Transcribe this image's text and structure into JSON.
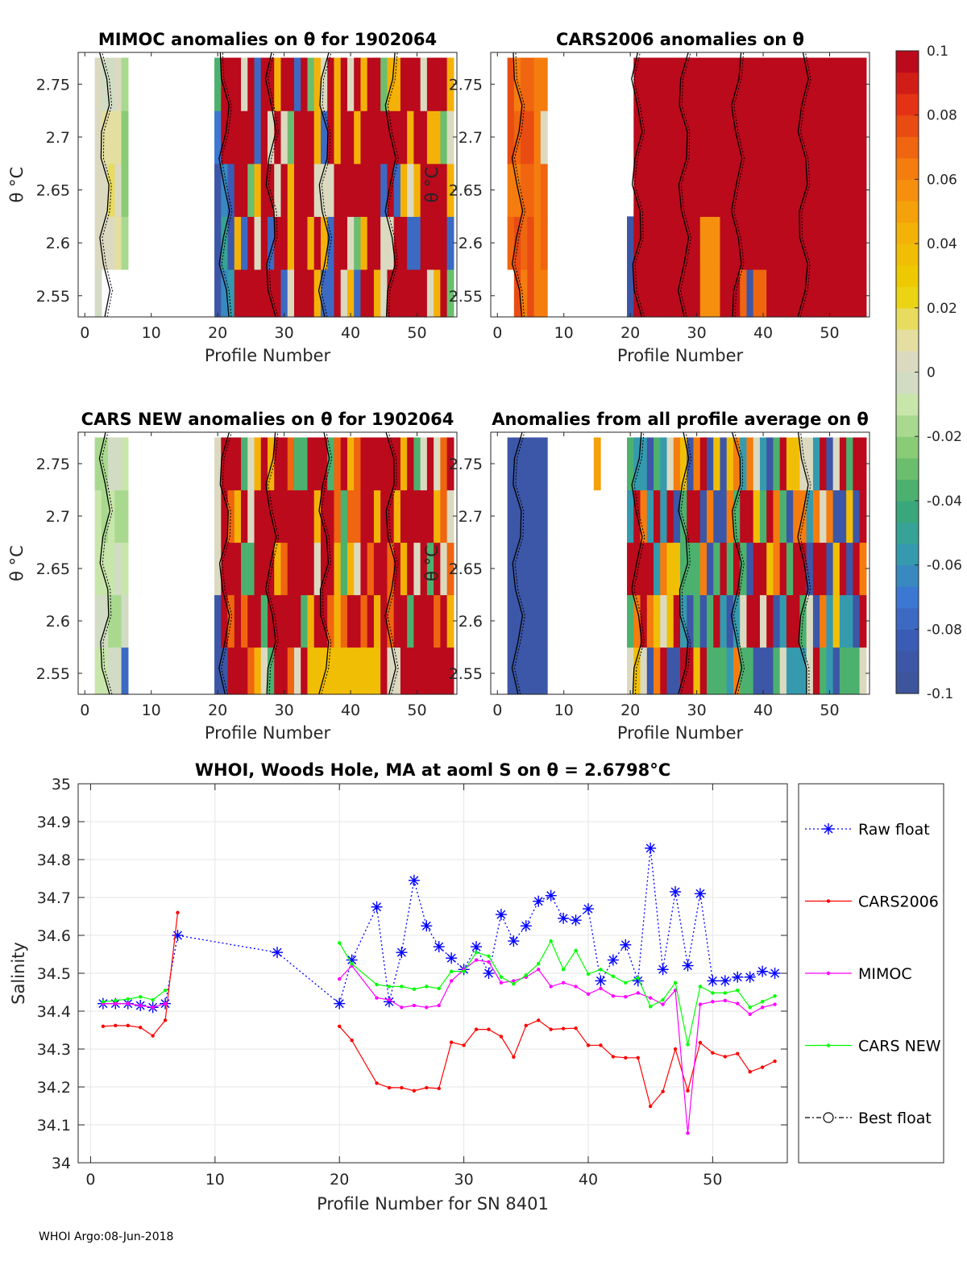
{
  "footer": "WHOI Argo:08-Jun-2018",
  "colors": {
    "raw": "#0000ff",
    "cars2006": "#ff0000",
    "mimoc": "#ff00ff",
    "carsnew": "#00ff00",
    "best": "#000000",
    "grid": "#e6e6e6",
    "axis": "#262626"
  },
  "colorbar": {
    "ticks": [
      "0.1",
      "0.08",
      "0.06",
      "0.04",
      "0.02",
      "0",
      "-0.02",
      "-0.04",
      "-0.06",
      "-0.08",
      "-0.1"
    ],
    "range": [
      -0.1,
      0.1
    ],
    "levels": 30
  },
  "heatmaps": {
    "xlabel": "Profile Number",
    "ylabel": "θ °C",
    "xticks": [
      "0",
      "10",
      "20",
      "30",
      "40",
      "50"
    ],
    "yticks": [
      "2.75",
      "2.7",
      "2.65",
      "2.6",
      "2.55"
    ],
    "panels": [
      {
        "title": "MIMOC anomalies on θ  for 1902064",
        "pattern": "mimoc"
      },
      {
        "title": "CARS2006 anomalies on θ",
        "pattern": "cars2006"
      },
      {
        "title": "CARS NEW anomalies on θ for 1902064",
        "pattern": "carsnew"
      },
      {
        "title": "Anomalies from all profile average on θ",
        "pattern": "avg"
      }
    ]
  },
  "chart_data": [
    {
      "type": "heatmap",
      "title": "MIMOC anomalies on θ  for 1902064",
      "xlabel": "Profile Number",
      "ylabel": "θ °C",
      "xlim": [
        -1,
        56
      ],
      "ylim": [
        2.53,
        2.78
      ],
      "theta_levels": [
        2.55,
        2.6,
        2.65,
        2.7,
        2.75
      ],
      "value_range": [
        -0.1,
        0.1
      ]
    },
    {
      "type": "heatmap",
      "title": "CARS2006 anomalies on θ",
      "xlabel": "Profile Number",
      "ylabel": "",
      "xlim": [
        -1,
        56
      ],
      "ylim": [
        2.53,
        2.78
      ],
      "theta_levels": [
        2.55,
        2.6,
        2.65,
        2.7,
        2.75
      ],
      "value_range": [
        -0.1,
        0.1
      ]
    },
    {
      "type": "heatmap",
      "title": "CARS NEW anomalies on θ for 1902064",
      "xlabel": "Profile Number",
      "ylabel": "θ °C",
      "xlim": [
        -1,
        56
      ],
      "ylim": [
        2.53,
        2.78
      ],
      "theta_levels": [
        2.55,
        2.6,
        2.65,
        2.7,
        2.75
      ],
      "value_range": [
        -0.1,
        0.1
      ]
    },
    {
      "type": "heatmap",
      "title": "Anomalies from all profile average on θ",
      "xlabel": "Profile Number",
      "ylabel": "",
      "xlim": [
        -1,
        56
      ],
      "ylim": [
        2.53,
        2.78
      ],
      "theta_levels": [
        2.55,
        2.6,
        2.65,
        2.7,
        2.75
      ],
      "value_range": [
        -0.1,
        0.1
      ]
    },
    {
      "type": "line",
      "title": "WHOI, Woods Hole, MA at aoml S on θ = 2.6798°C",
      "xlabel": "Profile Number for SN 8401",
      "ylabel": "Salinity",
      "xlim": [
        -1,
        56
      ],
      "ylim": [
        34,
        35
      ],
      "xticks": [
        "0",
        "10",
        "20",
        "30",
        "40",
        "50"
      ],
      "yticks": [
        "35",
        "34.9",
        "34.8",
        "34.7",
        "34.6",
        "34.5",
        "34.4",
        "34.3",
        "34.2",
        "34.1",
        "34"
      ],
      "grid": true,
      "legend_position": "right",
      "series": [
        {
          "name": "Raw float",
          "style": "dotted-star",
          "x": [
            1,
            2,
            3,
            4,
            5,
            6,
            7,
            15,
            20,
            21,
            23,
            24,
            25,
            26,
            27,
            28,
            29,
            30,
            31,
            32,
            33,
            34,
            35,
            36,
            37,
            38,
            39,
            40,
            41,
            42,
            43,
            44,
            45,
            46,
            47,
            48,
            49,
            50,
            51,
            52,
            53,
            54,
            55
          ],
          "y": [
            34.42,
            34.42,
            34.42,
            34.415,
            34.41,
            34.42,
            34.6,
            34.555,
            34.42,
            34.535,
            34.675,
            34.425,
            34.555,
            34.745,
            34.625,
            34.57,
            34.54,
            34.51,
            34.57,
            34.5,
            34.655,
            34.585,
            34.625,
            34.69,
            34.705,
            34.645,
            34.64,
            34.67,
            34.48,
            34.535,
            34.575,
            34.48,
            34.83,
            34.51,
            34.715,
            34.52,
            34.71,
            34.48,
            34.48,
            34.49,
            34.49,
            34.505,
            34.5
          ]
        },
        {
          "name": "CARS2006",
          "style": "solid-dot",
          "x": [
            1,
            2,
            3,
            4,
            5,
            6,
            7,
            null,
            20,
            21,
            23,
            24,
            25,
            26,
            27,
            28,
            29,
            30,
            31,
            32,
            33,
            34,
            35,
            36,
            37,
            38,
            39,
            40,
            41,
            42,
            43,
            44,
            45,
            46,
            47,
            48,
            49,
            50,
            51,
            52,
            53,
            54,
            55
          ],
          "y": [
            34.36,
            34.362,
            34.362,
            34.357,
            34.335,
            34.376,
            34.66,
            null,
            34.36,
            34.323,
            34.21,
            34.198,
            34.198,
            34.19,
            34.198,
            34.196,
            34.318,
            34.31,
            34.352,
            34.352,
            34.333,
            34.279,
            34.362,
            34.376,
            34.352,
            34.354,
            34.355,
            34.31,
            34.31,
            34.28,
            34.277,
            34.277,
            34.149,
            34.188,
            34.3,
            34.19,
            34.317,
            34.29,
            34.28,
            34.288,
            34.24,
            34.252,
            34.268
          ]
        },
        {
          "name": "MIMOC",
          "style": "solid-dot",
          "x": [
            1,
            2,
            3,
            4,
            5,
            6,
            null,
            20,
            21,
            23,
            24,
            25,
            26,
            27,
            28,
            29,
            30,
            31,
            32,
            33,
            34,
            35,
            36,
            37,
            38,
            39,
            40,
            41,
            42,
            43,
            44,
            45,
            46,
            47,
            48,
            49,
            50,
            51,
            52,
            53,
            54,
            55
          ],
          "y": [
            34.42,
            34.42,
            34.42,
            34.415,
            34.41,
            34.42,
            null,
            34.485,
            34.52,
            34.435,
            34.43,
            34.41,
            34.415,
            34.41,
            34.415,
            34.48,
            34.51,
            34.535,
            34.53,
            34.475,
            34.48,
            34.49,
            34.51,
            34.465,
            34.475,
            34.465,
            34.445,
            34.46,
            34.44,
            34.438,
            34.448,
            34.435,
            34.418,
            34.455,
            34.078,
            34.418,
            34.425,
            34.428,
            34.42,
            34.392,
            34.41,
            34.418
          ]
        },
        {
          "name": "CARS NEW",
          "style": "solid-dot",
          "x": [
            1,
            2,
            3,
            4,
            5,
            6,
            null,
            20,
            21,
            23,
            24,
            25,
            26,
            27,
            28,
            29,
            30,
            31,
            32,
            33,
            34,
            35,
            36,
            37,
            38,
            39,
            40,
            41,
            42,
            43,
            44,
            45,
            46,
            47,
            48,
            49,
            50,
            51,
            52,
            53,
            54,
            55
          ],
          "y": [
            34.425,
            34.428,
            34.432,
            34.438,
            34.43,
            34.455,
            null,
            34.58,
            34.525,
            34.47,
            34.465,
            34.465,
            34.458,
            34.465,
            34.46,
            34.505,
            34.505,
            34.555,
            34.545,
            34.49,
            34.472,
            34.495,
            34.525,
            34.585,
            34.51,
            34.56,
            34.498,
            34.51,
            34.492,
            34.475,
            34.488,
            34.412,
            34.43,
            34.475,
            34.312,
            34.465,
            34.448,
            34.448,
            34.455,
            34.41,
            34.425,
            34.44
          ]
        },
        {
          "name": "Best float",
          "style": "dashdot-circle",
          "x": [],
          "y": []
        }
      ]
    }
  ],
  "lineplot": {
    "title": "WHOI, Woods Hole, MA at aoml S on θ = 2.6798°C",
    "xlabel": "Profile Number for SN 8401",
    "ylabel": "Salinity",
    "legend": [
      "Raw float",
      "CARS2006",
      "MIMOC",
      "CARS NEW",
      "Best float"
    ]
  }
}
